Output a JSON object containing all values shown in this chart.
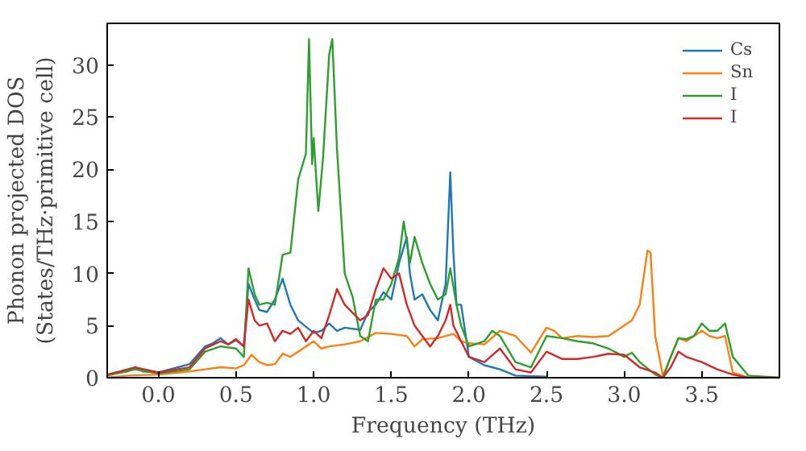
{
  "chart_data": {
    "type": "line",
    "xlabel": "Frequency (THz)",
    "ylabel": "Phonon projected DOS\n(States/THz·primitive cell)",
    "xlim": [
      -0.33,
      4.0
    ],
    "ylim": [
      0,
      34
    ],
    "xticks": [
      {
        "value": 0.0,
        "label": "0.0"
      },
      0.5,
      {
        "value": 1.0,
        "label": "1.0"
      },
      1.5,
      {
        "value": 2.0,
        "label": "2.0"
      },
      2.5,
      {
        "value": 3.0,
        "label": "3.0"
      },
      3.5
    ],
    "yticks": [
      0,
      5,
      10,
      15,
      20,
      25,
      30
    ],
    "grid": false,
    "legend": "top right",
    "line_style": "solid",
    "series": [
      {
        "name": "Cs",
        "color": "#1f77b4",
        "x": [
          -0.33,
          -0.2,
          -0.15,
          -0.1,
          0,
          0.2,
          0.3,
          0.35,
          0.4,
          0.45,
          0.5,
          0.55,
          0.58,
          0.62,
          0.65,
          0.7,
          0.75,
          0.8,
          0.85,
          0.9,
          1.0,
          1.05,
          1.1,
          1.15,
          1.2,
          1.3,
          1.35,
          1.4,
          1.45,
          1.5,
          1.55,
          1.6,
          1.62,
          1.65,
          1.7,
          1.75,
          1.8,
          1.85,
          1.88,
          1.9,
          1.92,
          1.95,
          2.0,
          2.1,
          2.2,
          2.3,
          2.5
        ],
        "values": [
          0.3,
          0.6,
          1.0,
          0.6,
          0.5,
          1.3,
          3.0,
          3.3,
          3.8,
          3.2,
          3.6,
          3.0,
          9.0,
          7.5,
          6.5,
          6.3,
          7.5,
          9.5,
          7,
          5.5,
          4.3,
          4.5,
          5.2,
          4.5,
          4.8,
          4.6,
          6.3,
          7.0,
          8.2,
          7.5,
          11,
          13.5,
          10,
          7.5,
          8.0,
          6.5,
          5.5,
          9,
          19.7,
          12,
          7,
          7,
          2,
          1.2,
          0.8,
          0.2,
          0.1
        ]
      },
      {
        "name": "Sn",
        "color": "#ff7f0e",
        "x": [
          -0.33,
          -0.2,
          0,
          0.2,
          0.3,
          0.4,
          0.5,
          0.55,
          0.6,
          0.65,
          0.7,
          0.75,
          0.8,
          0.85,
          0.9,
          1.0,
          1.05,
          1.1,
          1.2,
          1.3,
          1.4,
          1.5,
          1.6,
          1.65,
          1.7,
          1.8,
          1.9,
          1.95,
          2.0,
          2.1,
          2.2,
          2.3,
          2.4,
          2.5,
          2.55,
          2.6,
          2.7,
          2.8,
          2.9,
          3.0,
          3.05,
          3.1,
          3.15,
          3.17,
          3.2,
          3.25,
          3.3,
          3.35,
          3.4,
          3.5,
          3.55,
          3.6,
          3.65,
          3.7,
          3.8,
          4.0
        ],
        "values": [
          0,
          0.2,
          0.3,
          0.6,
          0.8,
          1.0,
          0.9,
          1.2,
          2.2,
          1.5,
          1.2,
          1.3,
          2.3,
          2.0,
          2.5,
          3.5,
          2.8,
          3.0,
          3.2,
          3.5,
          4.3,
          4.2,
          4.0,
          3.0,
          3.7,
          3.8,
          4.2,
          3.5,
          3.3,
          3.2,
          4.5,
          4.0,
          2.4,
          4.8,
          4.5,
          3.8,
          4.0,
          3.9,
          4.0,
          5.0,
          5.5,
          7.0,
          12.2,
          12.0,
          4,
          0.2,
          2.0,
          3.8,
          3.5,
          4.5,
          4.0,
          3.8,
          4.0,
          0.5,
          0,
          0
        ]
      },
      {
        "name": "I",
        "color": "#2ca02c",
        "x": [
          -0.33,
          -0.15,
          0,
          0.2,
          0.3,
          0.4,
          0.5,
          0.55,
          0.58,
          0.62,
          0.65,
          0.7,
          0.75,
          0.8,
          0.85,
          0.9,
          0.95,
          0.97,
          0.99,
          1.0,
          1.03,
          1.06,
          1.1,
          1.12,
          1.15,
          1.2,
          1.25,
          1.3,
          1.35,
          1.4,
          1.45,
          1.5,
          1.55,
          1.58,
          1.62,
          1.65,
          1.7,
          1.75,
          1.8,
          1.85,
          1.88,
          1.92,
          1.95,
          2.0,
          2.1,
          2.15,
          2.2,
          2.3,
          2.4,
          2.5,
          2.6,
          2.7,
          2.8,
          2.9,
          3.0,
          3.05,
          3.1,
          3.2,
          3.25,
          3.3,
          3.35,
          3.4,
          3.45,
          3.5,
          3.55,
          3.6,
          3.65,
          3.7,
          3.8,
          4.0
        ],
        "values": [
          0.2,
          0.8,
          0.4,
          0.8,
          2.5,
          3.0,
          2.8,
          2.0,
          10.5,
          8,
          7,
          7.2,
          7.0,
          11.8,
          12,
          19,
          21.5,
          32.5,
          20.5,
          23,
          16,
          21,
          31,
          32.5,
          22,
          10,
          7.8,
          4,
          3.5,
          7.5,
          7.5,
          9,
          11.5,
          15,
          11,
          13.5,
          11,
          9,
          7.5,
          8,
          10.5,
          7,
          5,
          3,
          3.5,
          4.5,
          4,
          1.5,
          1.0,
          4.0,
          3.8,
          3.5,
          3.3,
          2.8,
          2.0,
          2.4,
          1.5,
          0.3,
          0,
          2.0,
          3.8,
          3.7,
          4.0,
          5.2,
          4.5,
          4.5,
          5.2,
          2.0,
          0.2,
          0
        ]
      },
      {
        "name": "I",
        "color": "#d62728",
        "x": [
          -0.33,
          -0.15,
          0,
          0.2,
          0.3,
          0.4,
          0.45,
          0.5,
          0.55,
          0.58,
          0.62,
          0.65,
          0.7,
          0.75,
          0.8,
          0.85,
          0.9,
          0.95,
          1.0,
          1.05,
          1.1,
          1.15,
          1.2,
          1.3,
          1.35,
          1.4,
          1.45,
          1.5,
          1.55,
          1.6,
          1.65,
          1.7,
          1.75,
          1.8,
          1.85,
          1.88,
          1.9,
          1.95,
          2.0,
          2.1,
          2.2,
          2.3,
          2.4,
          2.5,
          2.6,
          2.7,
          2.8,
          2.9,
          3.0,
          3.1,
          3.2,
          3.25,
          3.3,
          3.35,
          3.4,
          3.5,
          3.6,
          3.7,
          3.8,
          4.0
        ],
        "values": [
          0.3,
          1.0,
          0.5,
          1.0,
          2.8,
          3.5,
          3.2,
          3.7,
          3.0,
          7.5,
          5.5,
          5.0,
          5.2,
          3.5,
          4.5,
          4.2,
          4.8,
          3.5,
          4.5,
          3.8,
          6.0,
          8.5,
          7.0,
          5.5,
          6.0,
          8.5,
          10.5,
          9.5,
          10,
          7,
          5,
          4,
          3.0,
          4.0,
          5.5,
          7.0,
          5,
          3.5,
          2.0,
          1.5,
          2.8,
          0.8,
          0.5,
          2.5,
          1.8,
          1.8,
          2.0,
          2.3,
          2.2,
          1.0,
          0.5,
          0,
          1.0,
          2.5,
          2.0,
          1.5,
          0.8,
          0.3,
          0,
          0
        ]
      }
    ]
  }
}
